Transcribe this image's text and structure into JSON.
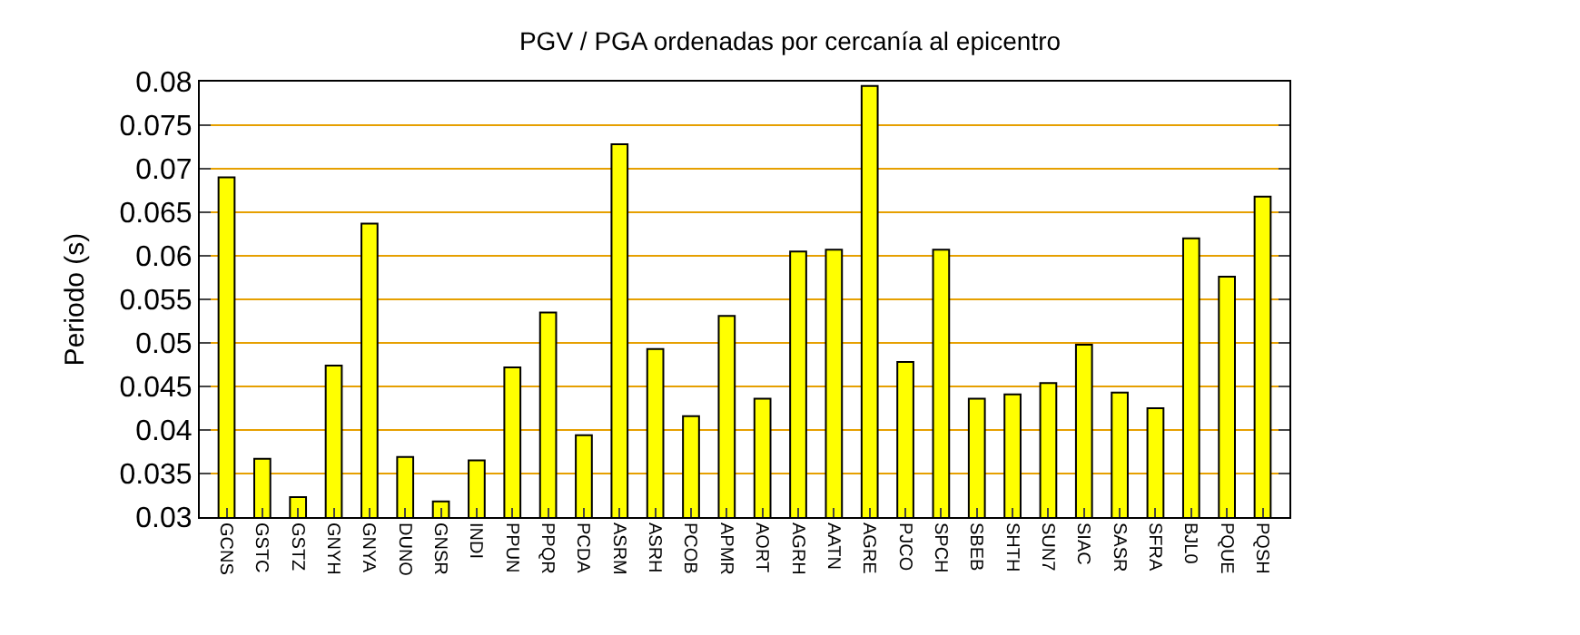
{
  "chart_data": {
    "type": "bar",
    "title": "PGV / PGA ordenadas por cercanía al epicentro",
    "ylabel": "Periodo (s)",
    "categories": [
      "GCNS",
      "GSTC",
      "GSTZ",
      "GNYH",
      "GNYA",
      "DUNO",
      "GNSR",
      "INDI",
      "PPUN",
      "PPQR",
      "PCDA",
      "ASRM",
      "ASRH",
      "PCOB",
      "APMR",
      "AORT",
      "AGRH",
      "AATN",
      "AGRE",
      "PJCO",
      "SPCH",
      "SBEB",
      "SHTH",
      "SUN7",
      "SIAC",
      "SASR",
      "SFRA",
      "BJL0",
      "PQUE",
      "PQSH"
    ],
    "values": [
      0.069,
      0.0367,
      0.0323,
      0.0474,
      0.0637,
      0.0369,
      0.0318,
      0.0365,
      0.0472,
      0.0535,
      0.0394,
      0.0728,
      0.0493,
      0.0416,
      0.0531,
      0.0436,
      0.0605,
      0.0607,
      0.0795,
      0.0478,
      0.0607,
      0.0436,
      0.0441,
      0.0454,
      0.0498,
      0.0443,
      0.0425,
      0.062,
      0.0576,
      0.0668
    ],
    "color": "#ffff00",
    "ylim": [
      0.03,
      0.08
    ],
    "yticks": [
      0.03,
      0.035,
      0.04,
      0.045,
      0.05,
      0.055,
      0.06,
      0.065,
      0.07,
      0.075,
      0.08
    ],
    "grid": "y"
  }
}
